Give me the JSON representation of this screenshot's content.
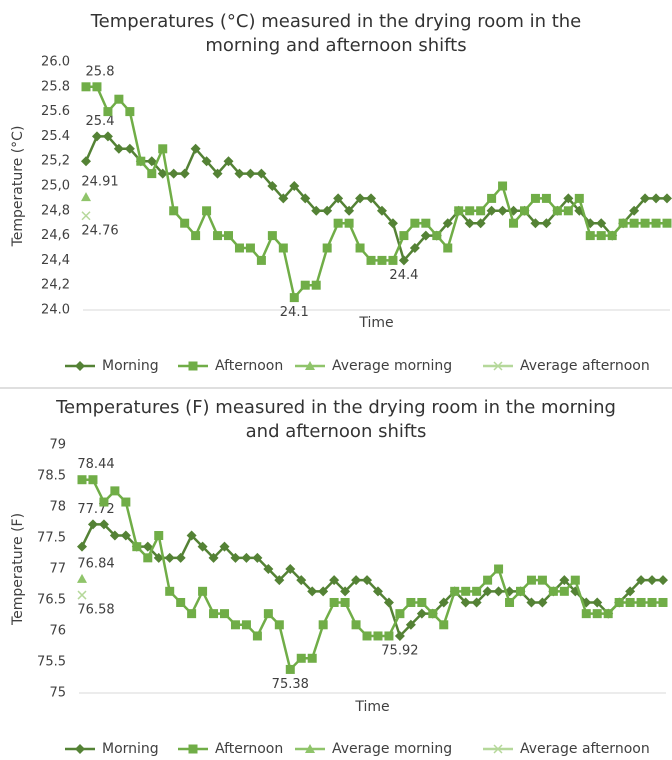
{
  "chart_data": [
    {
      "type": "line",
      "title": "Temperatures (°C) measured in the drying room in the morning and afternoon shifts",
      "x_label": "Time",
      "y_label": "Temperature (°C)",
      "ylim": [
        24,
        26
      ],
      "yticks": [
        {
          "value": 24,
          "label": "24.0"
        },
        {
          "value": 24.2,
          "label": "24,2"
        },
        {
          "value": 24.4,
          "label": "24,4"
        },
        {
          "value": 24.6,
          "label": "24,6"
        },
        {
          "value": 24.8,
          "label": "24,8"
        },
        {
          "value": 25,
          "label": "25,0"
        },
        {
          "value": 25.2,
          "label": "25,2"
        },
        {
          "value": 25.4,
          "label": "25.4"
        },
        {
          "value": 25.6,
          "label": "25.6"
        },
        {
          "value": 25.8,
          "label": "25.8"
        },
        {
          "value": 26,
          "label": "26.0"
        }
      ],
      "series": [
        {
          "name": "Morning",
          "color": "#548235",
          "marker": "diamond",
          "values": [
            25.2,
            25.4,
            25.4,
            25.3,
            25.3,
            25.2,
            25.2,
            25.1,
            25.1,
            25.1,
            25.3,
            25.2,
            25.1,
            25.2,
            25.1,
            25.1,
            25.1,
            25.0,
            24.9,
            25.0,
            24.9,
            24.8,
            24.8,
            24.9,
            24.8,
            24.9,
            24.9,
            24.8,
            24.7,
            24.4,
            24.5,
            24.6,
            24.6,
            24.7,
            24.8,
            24.7,
            24.7,
            24.8,
            24.8,
            24.8,
            24.8,
            24.7,
            24.7,
            24.8,
            24.9,
            24.8,
            24.7,
            24.7,
            24.6,
            24.7,
            24.8,
            24.9,
            24.9,
            24.9
          ],
          "value_labels": [
            null,
            "25.4",
            null,
            null,
            null,
            null,
            null,
            null,
            null,
            null,
            null,
            null,
            null,
            null,
            null,
            null,
            null,
            null,
            null,
            null,
            null,
            null,
            null,
            null,
            null,
            null,
            null,
            null,
            null,
            "24.4",
            null,
            null,
            null,
            null,
            null,
            null,
            null,
            null,
            null,
            null,
            null,
            null,
            null,
            null,
            null,
            null,
            null,
            null,
            null,
            null,
            null,
            null,
            null,
            null
          ]
        },
        {
          "name": "Afternoon",
          "color": "#70ad47",
          "marker": "square",
          "values": [
            25.8,
            25.8,
            25.6,
            25.7,
            25.6,
            25.2,
            25.1,
            25.3,
            24.8,
            24.7,
            24.6,
            24.8,
            24.6,
            24.6,
            24.5,
            24.5,
            24.4,
            24.6,
            24.5,
            24.1,
            24.2,
            24.2,
            24.5,
            24.7,
            24.7,
            24.5,
            24.4,
            24.4,
            24.4,
            24.6,
            24.7,
            24.7,
            24.6,
            24.5,
            24.8,
            24.8,
            24.8,
            24.9,
            25.0,
            24.7,
            24.8,
            24.9,
            24.9,
            24.8,
            24.8,
            24.9,
            24.6,
            24.6,
            24.6,
            24.7,
            24.7,
            24.7,
            24.7,
            24.7
          ],
          "value_labels": [
            "25.8",
            null,
            null,
            null,
            null,
            null,
            null,
            null,
            null,
            null,
            null,
            null,
            null,
            null,
            null,
            null,
            null,
            null,
            null,
            "24.1",
            null,
            null,
            null,
            null,
            null,
            null,
            null,
            null,
            null,
            null,
            null,
            null,
            null,
            null,
            null,
            null,
            null,
            null,
            null,
            null,
            null,
            null,
            null,
            null,
            null,
            null,
            null,
            null,
            null,
            null,
            null,
            null,
            null,
            null
          ]
        },
        {
          "name": "Average morning",
          "color": "#8fc46a",
          "marker": "triangle",
          "values": [
            24.91
          ],
          "value_labels": [
            "24.91"
          ]
        },
        {
          "name": "Average afternoon",
          "color": "#b5d89a",
          "marker": "x",
          "values": [
            24.76
          ],
          "value_labels": [
            "24.76"
          ]
        }
      ]
    },
    {
      "type": "line",
      "title": "Temperatures (F) measured in the drying room in the morning and afternoon shifts",
      "x_label": "Time",
      "y_label": "Temperature (F)",
      "ylim": [
        75,
        79
      ],
      "yticks": [
        75,
        75.5,
        76,
        76.5,
        77,
        77.5,
        78,
        78.5,
        79
      ],
      "series": [
        {
          "name": "Morning",
          "color": "#548235",
          "marker": "diamond",
          "values": [
            77.36,
            77.72,
            77.72,
            77.54,
            77.54,
            77.36,
            77.36,
            77.18,
            77.18,
            77.18,
            77.54,
            77.36,
            77.18,
            77.36,
            77.18,
            77.18,
            77.18,
            77,
            76.82,
            77,
            76.82,
            76.64,
            76.64,
            76.82,
            76.64,
            76.82,
            76.82,
            76.64,
            76.46,
            75.92,
            76.1,
            76.28,
            76.28,
            76.46,
            76.64,
            76.46,
            76.46,
            76.64,
            76.64,
            76.64,
            76.64,
            76.46,
            76.46,
            76.64,
            76.82,
            76.64,
            76.46,
            76.46,
            76.28,
            76.46,
            76.64,
            76.82,
            76.82,
            76.82
          ],
          "value_labels": [
            null,
            "77.72",
            null,
            null,
            null,
            null,
            null,
            null,
            null,
            null,
            null,
            null,
            null,
            null,
            null,
            null,
            null,
            null,
            null,
            null,
            null,
            null,
            null,
            null,
            null,
            null,
            null,
            null,
            null,
            "75.92",
            null,
            null,
            null,
            null,
            null,
            null,
            null,
            null,
            null,
            null,
            null,
            null,
            null,
            null,
            null,
            null,
            null,
            null,
            null,
            null,
            null,
            null,
            null,
            null
          ]
        },
        {
          "name": "Afternoon",
          "color": "#70ad47",
          "marker": "square",
          "values": [
            78.44,
            78.44,
            78.08,
            78.26,
            78.08,
            77.36,
            77.18,
            77.54,
            76.64,
            76.46,
            76.28,
            76.64,
            76.28,
            76.28,
            76.1,
            76.1,
            75.92,
            76.28,
            76.1,
            75.38,
            75.56,
            75.56,
            76.1,
            76.46,
            76.46,
            76.1,
            75.92,
            75.92,
            75.92,
            76.28,
            76.46,
            76.46,
            76.28,
            76.1,
            76.64,
            76.64,
            76.64,
            76.82,
            77,
            76.46,
            76.64,
            76.82,
            76.82,
            76.64,
            76.64,
            76.82,
            76.28,
            76.28,
            76.28,
            76.46,
            76.46,
            76.46,
            76.46,
            76.46
          ],
          "value_labels": [
            "78.44",
            null,
            null,
            null,
            null,
            null,
            null,
            null,
            null,
            null,
            null,
            null,
            null,
            null,
            null,
            null,
            null,
            null,
            null,
            "75.38",
            null,
            null,
            null,
            null,
            null,
            null,
            null,
            null,
            null,
            null,
            null,
            null,
            null,
            null,
            null,
            null,
            null,
            null,
            null,
            null,
            null,
            null,
            null,
            null,
            null,
            null,
            null,
            null,
            null,
            null,
            null,
            null,
            null,
            null
          ]
        },
        {
          "name": "Average morning",
          "color": "#8fc46a",
          "marker": "triangle",
          "values": [
            76.84
          ],
          "value_labels": [
            "76.84"
          ]
        },
        {
          "name": "Average afternoon",
          "color": "#b5d89a",
          "marker": "x",
          "values": [
            76.58
          ],
          "value_labels": [
            "76.58"
          ]
        }
      ]
    }
  ]
}
